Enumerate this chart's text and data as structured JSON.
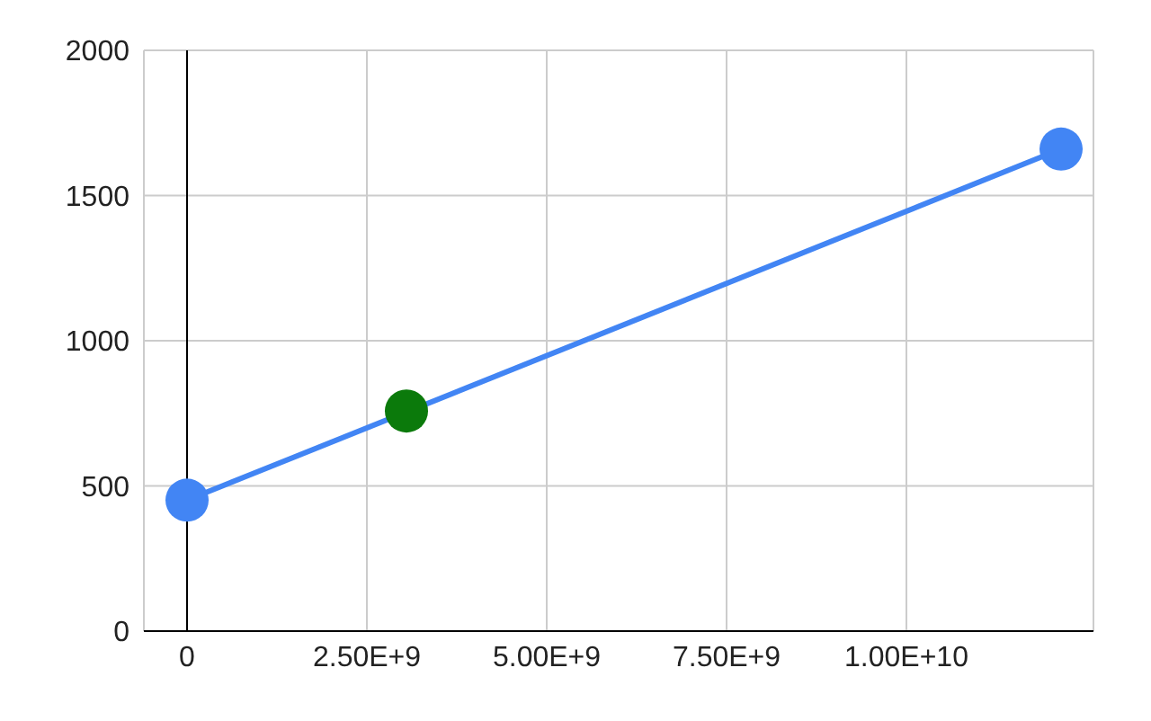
{
  "chart_data": {
    "type": "scatter",
    "xlim": [
      -600000000,
      12600000000
    ],
    "xticks": [
      {
        "value": 0,
        "label": "0"
      },
      {
        "value": 2500000000,
        "label": "2.50E+9"
      },
      {
        "value": 5000000000,
        "label": "5.00E+9"
      },
      {
        "value": 7500000000,
        "label": "7.50E+9"
      },
      {
        "value": 10000000000,
        "label": "1.00E+10"
      }
    ],
    "ylim": [
      0,
      2000
    ],
    "yticks": [
      0,
      500,
      1000,
      1500,
      2000
    ],
    "grid": true,
    "marker": "circle",
    "line_style": "solid",
    "series": [
      {
        "type": "line",
        "color": "#4285f4",
        "x": [
          0,
          12150000000
        ],
        "values": [
          451,
          1660
        ]
      },
      {
        "type": "scatter",
        "color": "#0b7a0b",
        "x": [
          3050000000
        ],
        "values": [
          758
        ]
      }
    ]
  }
}
